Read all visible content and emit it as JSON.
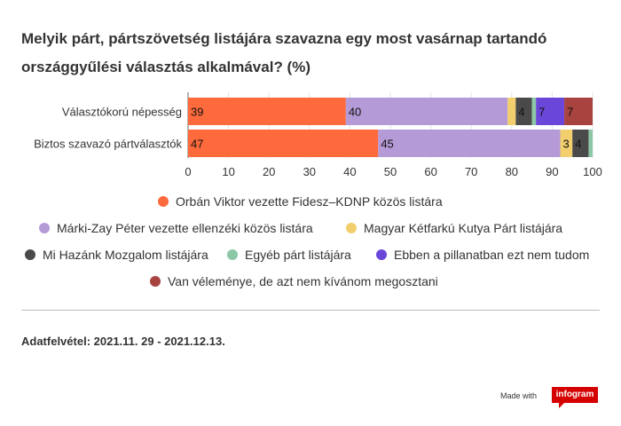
{
  "title_line1": "Melyik párt, pártszövetség listájára szavazna egy most vasárnap tartandó",
  "title_line2": "országgyűlési választás alkalmával? (%)",
  "footnote": "Adatfelvétel:  2021.11. 29 - 2021.12.13.",
  "made_with": "Made with",
  "brand": "infogram",
  "chart_data": {
    "type": "bar",
    "orientation": "horizontal",
    "stacked": true,
    "categories": [
      "Választókorú népesség",
      "Biztos szavazó pártválasztók"
    ],
    "series": [
      {
        "name": "Orbán Viktor vezette Fidesz–KDNP közös listára",
        "color": "#ff6a3d",
        "values": [
          39,
          47
        ],
        "labels": [
          "39",
          "47"
        ]
      },
      {
        "name": "Márki-Zay Péter vezette ellenzéki közös listára",
        "color": "#b49ad6",
        "values": [
          40,
          45
        ],
        "labels": [
          "40",
          "45"
        ]
      },
      {
        "name": "Magyar Kétfarkú Kutya Párt listájára",
        "color": "#f2cf6c",
        "values": [
          2,
          3
        ],
        "labels": [
          "",
          "3"
        ]
      },
      {
        "name": "Mi Hazánk Mozgalom listájára",
        "color": "#4a4a4a",
        "values": [
          4,
          4
        ],
        "labels": [
          "4",
          "4"
        ]
      },
      {
        "name": "Egyéb párt listájára",
        "color": "#8cc7a6",
        "values": [
          1,
          1
        ],
        "labels": [
          "",
          ""
        ]
      },
      {
        "name": "Ebben a pillanatban ezt nem tudom",
        "color": "#6a47d9",
        "values": [
          7,
          0
        ],
        "labels": [
          "7",
          ""
        ]
      },
      {
        "name": "Van véleménye, de azt nem kívánom megosztani",
        "color": "#a9433f",
        "values": [
          7,
          0
        ],
        "labels": [
          "7",
          ""
        ]
      }
    ],
    "xlim": [
      0,
      100
    ],
    "xticks": [
      0,
      10,
      20,
      30,
      40,
      50,
      60,
      70,
      80,
      90,
      100
    ],
    "grid": true,
    "legend": "bottom"
  }
}
